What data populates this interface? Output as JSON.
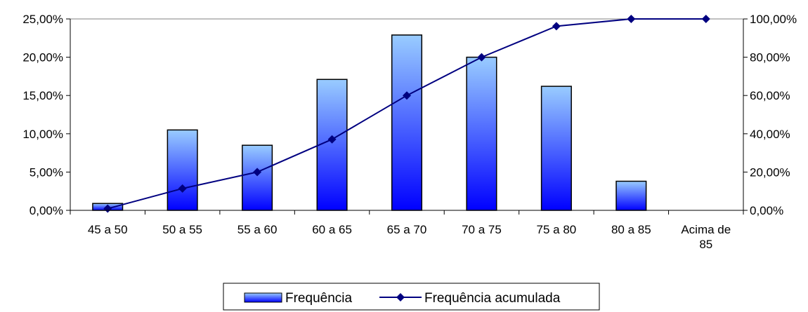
{
  "chart_data": {
    "type": "bar",
    "categories": [
      "45 a 50",
      "50 a 55",
      "55 a 60",
      "60 a 65",
      "65 a 70",
      "70 a 75",
      "75 a 80",
      "80 a 85",
      "Acima de 85"
    ],
    "series": [
      {
        "name": "Frequência",
        "type": "bar",
        "axis": "left",
        "values": [
          0.9,
          10.5,
          8.5,
          17.1,
          22.9,
          20.0,
          16.2,
          3.8,
          0.0
        ]
      },
      {
        "name": "Frequência acumulada",
        "type": "line",
        "axis": "right",
        "values": [
          0.9,
          11.4,
          20.0,
          37.1,
          60.0,
          80.0,
          96.2,
          100.0,
          100.0
        ]
      }
    ],
    "y_left": {
      "ylim": [
        0,
        25
      ],
      "ticks": [
        0,
        5,
        10,
        15,
        20,
        25
      ],
      "tick_labels": [
        "0,00%",
        "5,00%",
        "10,00%",
        "15,00%",
        "20,00%",
        "25,00%"
      ]
    },
    "y_right": {
      "ylim": [
        0,
        100
      ],
      "ticks": [
        0,
        20,
        40,
        60,
        80,
        100
      ],
      "tick_labels": [
        "0,00%",
        "20,00%",
        "40,00%",
        "60,00%",
        "80,00%",
        "100,00%"
      ]
    },
    "title": "",
    "xlabel": "",
    "ylabel": "",
    "grid": false,
    "legend": "bottom",
    "colors": {
      "bar_top": "#99ccff",
      "bar_bottom": "#0000ff",
      "bar_edge": "#000000",
      "line": "#000080",
      "axis": "#808080"
    }
  }
}
